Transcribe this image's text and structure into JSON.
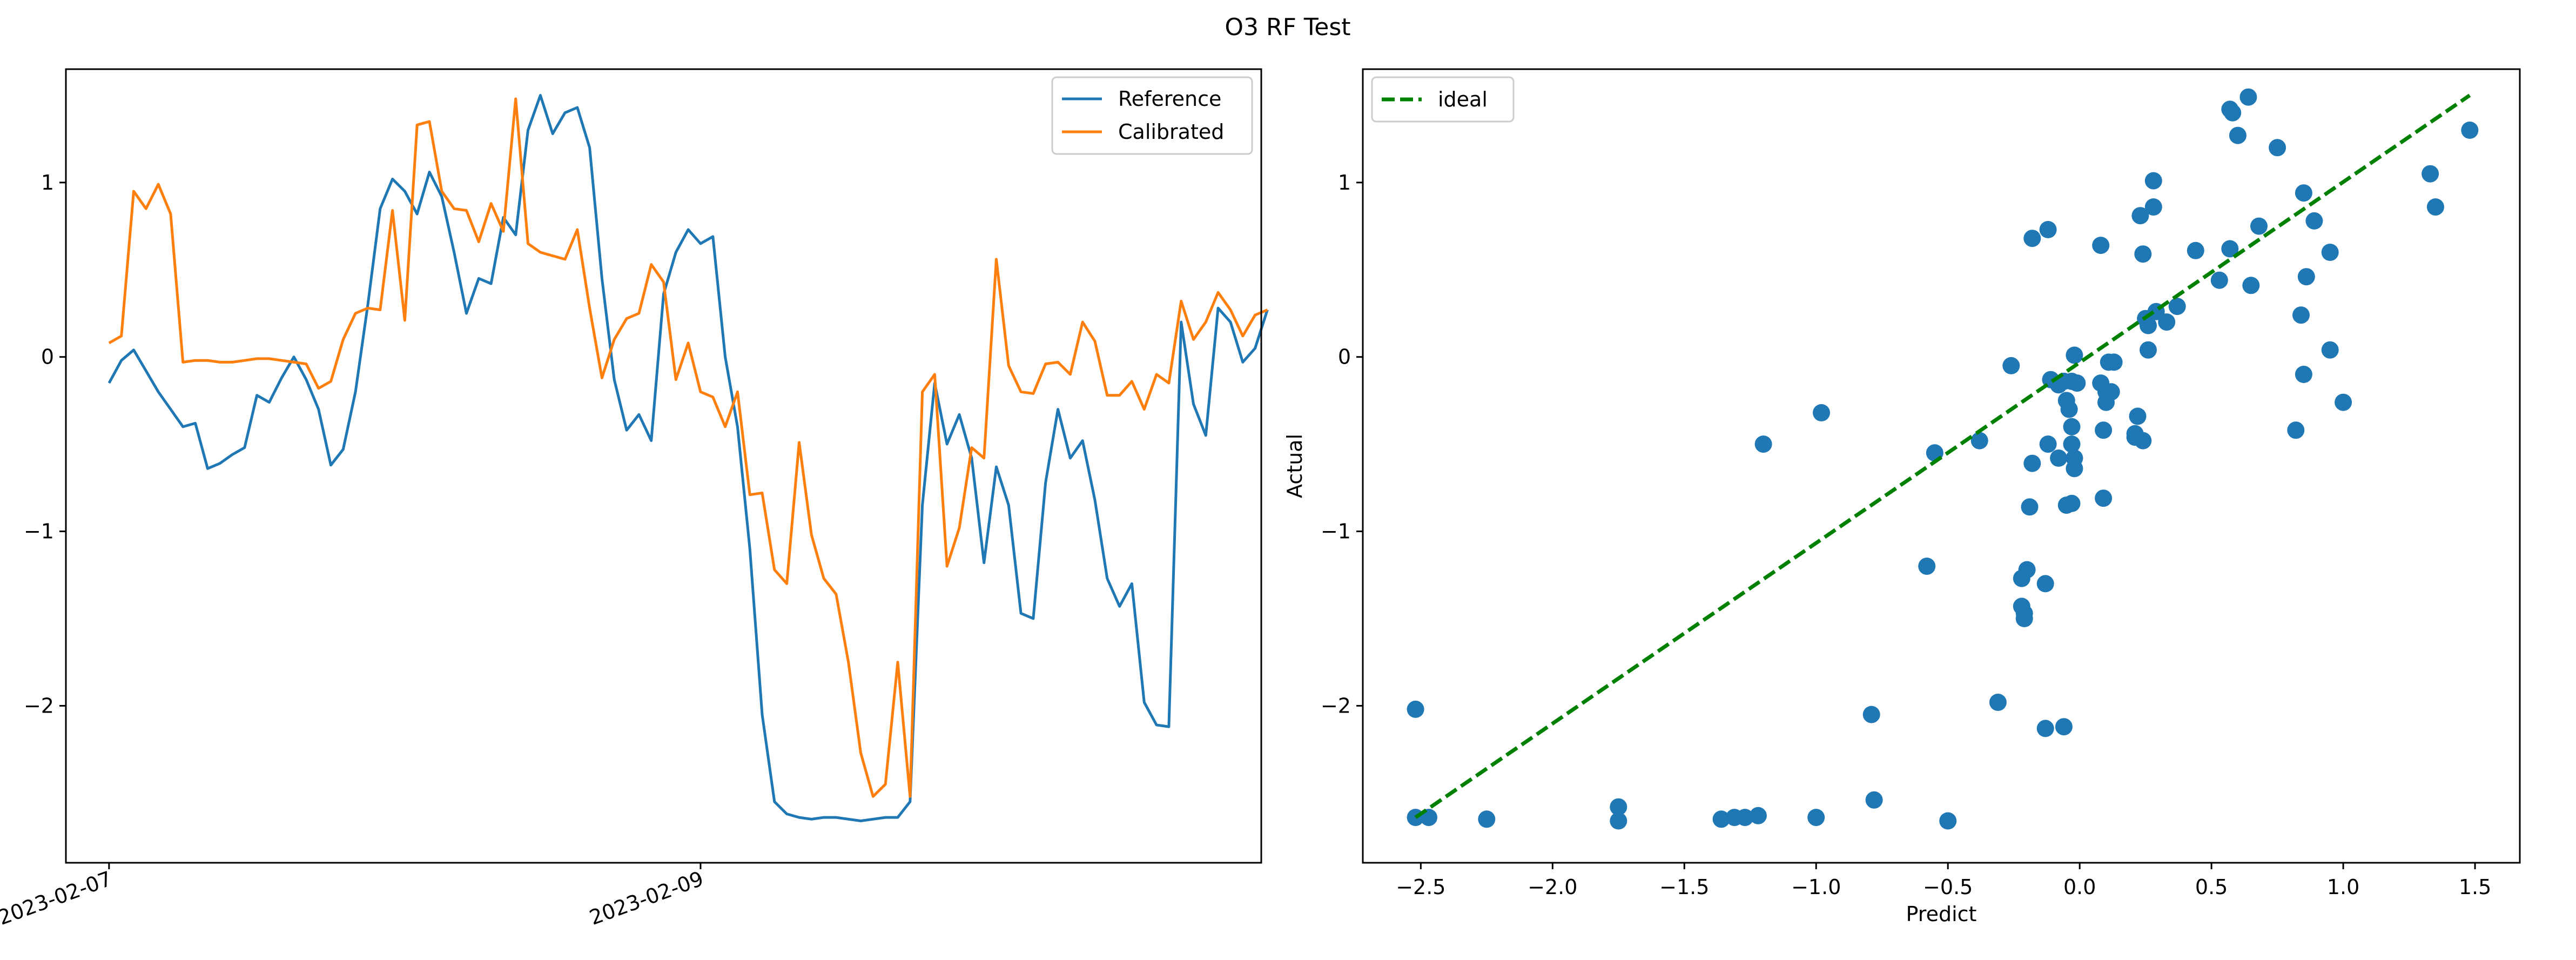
{
  "figure": {
    "suptitle": "O3 RF Test"
  },
  "chart_data": [
    {
      "type": "line",
      "title": "",
      "xlabel": "",
      "ylabel": "",
      "x_start": "2023-02-07T00:00",
      "x_step_hours": 1,
      "x_ticks": [
        {
          "label": "2023-02-07",
          "value": "2023-02-07"
        },
        {
          "label": "2023-02-09",
          "value": "2023-02-09"
        }
      ],
      "xlim": [
        "2023-02-06T20:30",
        "2023-02-10T21:30"
      ],
      "ylim": [
        -2.9,
        1.65
      ],
      "y_ticks": [
        -2,
        -1,
        0,
        1
      ],
      "grid": false,
      "legend": "top-right",
      "series": [
        {
          "name": "Reference",
          "color": "#1f77b4",
          "values": [
            -0.15,
            -0.02,
            0.04,
            -0.08,
            -0.2,
            -0.3,
            -0.4,
            -0.38,
            -0.64,
            -0.61,
            -0.56,
            -0.52,
            -0.22,
            -0.26,
            -0.12,
            0.0,
            -0.13,
            -0.3,
            -0.62,
            -0.53,
            -0.2,
            0.3,
            0.85,
            1.02,
            0.95,
            0.82,
            1.06,
            0.92,
            0.6,
            0.25,
            0.45,
            0.42,
            0.8,
            0.7,
            1.3,
            1.5,
            1.28,
            1.4,
            1.43,
            1.2,
            0.45,
            -0.13,
            -0.42,
            -0.33,
            -0.48,
            0.36,
            0.6,
            0.73,
            0.65,
            0.69,
            0.0,
            -0.4,
            -1.1,
            -2.05,
            -2.55,
            -2.62,
            -2.64,
            -2.65,
            -2.64,
            -2.64,
            -2.65,
            -2.66,
            -2.65,
            -2.64,
            -2.64,
            -2.55,
            -0.85,
            -0.15,
            -0.5,
            -0.33,
            -0.58,
            -1.18,
            -0.63,
            -0.85,
            -1.47,
            -1.5,
            -0.72,
            -0.3,
            -0.58,
            -0.48,
            -0.82,
            -1.27,
            -1.43,
            -1.3,
            -1.98,
            -2.11,
            -2.12,
            0.2,
            -0.27,
            -0.45,
            0.28,
            0.2,
            -0.03,
            0.05,
            0.27
          ]
        },
        {
          "name": "Calibrated",
          "color": "#ff7f0e",
          "values": [
            0.08,
            0.12,
            0.95,
            0.85,
            0.99,
            0.82,
            -0.03,
            -0.02,
            -0.02,
            -0.03,
            -0.03,
            -0.02,
            -0.01,
            -0.01,
            -0.02,
            -0.03,
            -0.04,
            -0.18,
            -0.14,
            0.1,
            0.25,
            0.28,
            0.27,
            0.84,
            0.21,
            1.33,
            1.35,
            0.95,
            0.85,
            0.84,
            0.66,
            0.88,
            0.72,
            1.48,
            0.65,
            0.6,
            0.58,
            0.56,
            0.73,
            0.28,
            -0.12,
            0.1,
            0.22,
            0.25,
            0.53,
            0.43,
            -0.13,
            0.08,
            -0.2,
            -0.23,
            -0.4,
            -0.2,
            -0.79,
            -0.78,
            -1.22,
            -1.3,
            -0.49,
            -1.02,
            -1.27,
            -1.36,
            -1.75,
            -2.27,
            -2.52,
            -2.45,
            -1.75,
            -2.52,
            -0.2,
            -0.1,
            -1.2,
            -0.98,
            -0.52,
            -0.58,
            0.56,
            -0.05,
            -0.2,
            -0.21,
            -0.04,
            -0.03,
            -0.1,
            0.2,
            0.09,
            -0.22,
            -0.22,
            -0.14,
            -0.3,
            -0.1,
            -0.15,
            0.32,
            0.1,
            0.2,
            0.37,
            0.27,
            0.12,
            0.24,
            0.27
          ]
        }
      ]
    },
    {
      "type": "scatter",
      "title": "",
      "xlabel": "Predict",
      "ylabel": "Actual",
      "xlim": [
        -2.72,
        1.67
      ],
      "ylim": [
        -2.9,
        1.65
      ],
      "x_ticks": [
        -2.5,
        -2.0,
        -1.5,
        -1.0,
        -0.5,
        0.0,
        0.5,
        1.0,
        1.5
      ],
      "x_tick_labels": [
        "−2.5",
        "−2.0",
        "−1.5",
        "−1.0",
        "−0.5",
        "0.0",
        "0.5",
        "1.0",
        "1.5"
      ],
      "y_ticks": [
        -2,
        -1,
        0,
        1
      ],
      "grid": false,
      "legend": "top-left",
      "ideal_line": {
        "name": "ideal",
        "color": "#008000",
        "style": "dashed",
        "x": [
          -2.52,
          1.48
        ],
        "y": [
          -2.64,
          1.5
        ]
      },
      "points_color": "#1f77b4",
      "points": [
        [
          -2.52,
          -2.02
        ],
        [
          -2.52,
          -2.64
        ],
        [
          -2.47,
          -2.64
        ],
        [
          -2.25,
          -2.65
        ],
        [
          -1.75,
          -2.58
        ],
        [
          -1.75,
          -2.66
        ],
        [
          -1.36,
          -2.65
        ],
        [
          -1.31,
          -2.64
        ],
        [
          -1.27,
          -2.64
        ],
        [
          -1.22,
          -2.63
        ],
        [
          -1.0,
          -2.64
        ],
        [
          -0.78,
          -2.54
        ],
        [
          -0.5,
          -2.66
        ],
        [
          -0.79,
          -2.05
        ],
        [
          -0.31,
          -1.98
        ],
        [
          -0.13,
          -2.13
        ],
        [
          -0.06,
          -2.12
        ],
        [
          -0.58,
          -1.2
        ],
        [
          -0.22,
          -1.43
        ],
        [
          -0.21,
          -1.47
        ],
        [
          -0.21,
          -1.5
        ],
        [
          -0.22,
          -1.27
        ],
        [
          -0.2,
          -1.22
        ],
        [
          -0.13,
          -1.3
        ],
        [
          -1.2,
          -0.5
        ],
        [
          -0.98,
          -0.32
        ],
        [
          -0.55,
          -0.55
        ],
        [
          -0.38,
          -0.48
        ],
        [
          -0.19,
          -0.86
        ],
        [
          -0.18,
          -0.61
        ],
        [
          -0.12,
          -0.5
        ],
        [
          -0.08,
          -0.58
        ],
        [
          -0.05,
          -0.85
        ],
        [
          -0.03,
          -0.84
        ],
        [
          -0.02,
          -0.58
        ],
        [
          -0.02,
          -0.64
        ],
        [
          -0.03,
          -0.5
        ],
        [
          -0.03,
          -0.4
        ],
        [
          -0.04,
          -0.3
        ],
        [
          -0.05,
          -0.25
        ],
        [
          -0.26,
          -0.05
        ],
        [
          -0.11,
          -0.13
        ],
        [
          -0.08,
          -0.16
        ],
        [
          -0.06,
          -0.14
        ],
        [
          -0.02,
          0.01
        ],
        [
          -0.03,
          -0.14
        ],
        [
          -0.01,
          -0.15
        ],
        [
          0.08,
          -0.15
        ],
        [
          0.1,
          -0.2
        ],
        [
          0.12,
          -0.2
        ],
        [
          0.1,
          -0.26
        ],
        [
          0.11,
          -0.03
        ],
        [
          0.13,
          -0.03
        ],
        [
          0.09,
          -0.42
        ],
        [
          0.09,
          -0.81
        ],
        [
          0.21,
          -0.44
        ],
        [
          0.22,
          -0.34
        ],
        [
          0.24,
          -0.48
        ],
        [
          0.21,
          -0.46
        ],
        [
          0.26,
          0.04
        ],
        [
          0.25,
          0.22
        ],
        [
          0.26,
          0.18
        ],
        [
          0.29,
          0.26
        ],
        [
          0.33,
          0.2
        ],
        [
          0.37,
          0.29
        ],
        [
          -0.18,
          0.68
        ],
        [
          -0.12,
          0.73
        ],
        [
          0.08,
          0.64
        ],
        [
          0.23,
          0.81
        ],
        [
          0.24,
          0.59
        ],
        [
          0.28,
          1.01
        ],
        [
          0.28,
          0.86
        ],
        [
          0.44,
          0.61
        ],
        [
          0.53,
          0.44
        ],
        [
          0.57,
          0.62
        ],
        [
          0.57,
          1.42
        ],
        [
          0.58,
          1.4
        ],
        [
          0.6,
          1.27
        ],
        [
          0.64,
          1.49
        ],
        [
          0.65,
          0.41
        ],
        [
          0.68,
          0.75
        ],
        [
          0.75,
          1.2
        ],
        [
          0.82,
          -0.42
        ],
        [
          0.84,
          0.24
        ],
        [
          0.85,
          -0.1
        ],
        [
          0.86,
          0.46
        ],
        [
          0.85,
          0.94
        ],
        [
          0.89,
          0.78
        ],
        [
          0.95,
          0.6
        ],
        [
          0.95,
          0.04
        ],
        [
          1.0,
          -0.26
        ],
        [
          1.33,
          1.05
        ],
        [
          1.35,
          0.86
        ],
        [
          1.48,
          1.3
        ]
      ]
    }
  ]
}
